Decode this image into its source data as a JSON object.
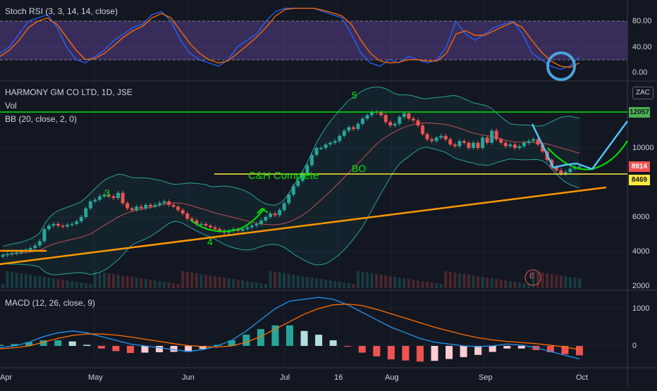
{
  "panes": {
    "stoch": {
      "title": "Stoch RSI (3, 3, 14, 14, close)",
      "yticks": [
        "80.00",
        "40.00",
        "0.00"
      ]
    },
    "price": {
      "symbol": "HARMONY GM CO LTD, 1D, JSE",
      "vol": "Vol",
      "bb": "BB (20, close, 2, 0)",
      "yticks": [
        "10000",
        "6000",
        "4000",
        "2000"
      ],
      "toggle": "ZAC"
    },
    "macd": {
      "title": "MACD (12, 26, close, 9)",
      "yticks": [
        "1000",
        "0"
      ]
    }
  },
  "price_tags": {
    "resistance": {
      "value": "12057",
      "bg": "#4caf50",
      "fg": "#131722"
    },
    "last": {
      "value": "8914",
      "bg": "#ef5350",
      "fg": "#ffffff"
    },
    "support": {
      "value": "8469",
      "bg": "#ffeb3b",
      "fg": "#131722"
    }
  },
  "annotations": {
    "wave3": "3",
    "wave4": "4",
    "wave5": "5",
    "ch_complete": "C&H Complete",
    "bo": "BO",
    "earnings": "E"
  },
  "x_axis": [
    "Apr",
    "May",
    "Jun",
    "Jul",
    "16",
    "Aug",
    "Sep",
    "Oct"
  ],
  "colors": {
    "up": "#26a69a",
    "down": "#ef5350",
    "green_line": "#00e600",
    "yellow": "#ffeb3b",
    "orange": "#ff9800",
    "cyan": "#4fc3f7"
  },
  "chart_data": {
    "type": "candlestick",
    "title": "HARMONY GM CO LTD, 1D, JSE",
    "levels": {
      "resistance": 12057,
      "support": 8469,
      "last": 8914
    },
    "closes": [
      3800,
      3850,
      3900,
      3950,
      4000,
      4100,
      4200,
      4350,
      4600,
      5300,
      5500,
      5600,
      5500,
      5450,
      5550,
      5600,
      5750,
      6000,
      6500,
      6900,
      7000,
      7200,
      7300,
      7200,
      7100,
      7400,
      6800,
      6500,
      6400,
      6600,
      6500,
      6700,
      6600,
      6700,
      6800,
      6900,
      6700,
      6600,
      6400,
      6200,
      5900,
      5800,
      5600,
      5600,
      5500,
      5400,
      5300,
      5200,
      5100,
      5200,
      5300,
      5200,
      5300,
      5400,
      5500,
      5600,
      5800,
      6000,
      6200,
      6100,
      6400,
      6800,
      7300,
      7800,
      8100,
      8500,
      9000,
      9600,
      10000,
      10000,
      10200,
      10300,
      10400,
      10700,
      11000,
      11200,
      11100,
      11400,
      11700,
      11900,
      12100,
      12050,
      11900,
      11500,
      11300,
      11400,
      11800,
      12000,
      11700,
      11600,
      11300,
      10800,
      10500,
      10400,
      10600,
      10700,
      10500,
      10200,
      10100,
      10400,
      10300,
      10000,
      10300,
      10000,
      10600,
      10300,
      11000,
      10500,
      10300,
      10100,
      10200,
      10000,
      10100,
      10300,
      10400,
      10500,
      10200,
      9800,
      9300,
      8900,
      8700,
      8500,
      8600,
      8800,
      8900,
      8914
    ],
    "stoch_rsi": {
      "k": [
        30,
        40,
        60,
        80,
        85,
        90,
        70,
        40,
        20,
        15,
        25,
        35,
        50,
        60,
        70,
        75,
        90,
        95,
        80,
        50,
        30,
        20,
        15,
        10,
        20,
        40,
        50,
        60,
        80,
        95,
        100,
        100,
        100,
        100,
        95,
        90,
        85,
        60,
        30,
        15,
        10,
        20,
        15,
        25,
        20,
        15,
        20,
        40,
        80,
        60,
        50,
        60,
        70,
        75,
        80,
        60,
        30,
        20,
        10,
        5,
        10,
        25
      ],
      "d": [
        25,
        35,
        50,
        70,
        80,
        85,
        75,
        55,
        35,
        20,
        22,
        30,
        42,
        55,
        65,
        72,
        85,
        92,
        85,
        65,
        45,
        30,
        20,
        15,
        18,
        30,
        42,
        55,
        70,
        88,
        98,
        100,
        100,
        100,
        97,
        93,
        88,
        75,
        50,
        30,
        18,
        15,
        16,
        20,
        20,
        18,
        18,
        30,
        60,
        65,
        58,
        58,
        65,
        72,
        78,
        70,
        50,
        32,
        18,
        10,
        8,
        15
      ]
    },
    "macd": {
      "macd": [
        -50,
        0,
        100,
        250,
        350,
        400,
        350,
        250,
        150,
        50,
        0,
        -50,
        -100,
        -150,
        -100,
        0,
        150,
        400,
        700,
        1000,
        1200,
        1250,
        1300,
        1250,
        1100,
        900,
        700,
        500,
        350,
        200,
        100,
        50,
        0,
        -20,
        0,
        50,
        20,
        -50,
        -150,
        -250,
        -350
      ],
      "signal": [
        -80,
        -50,
        0,
        100,
        200,
        280,
        320,
        320,
        290,
        240,
        180,
        120,
        60,
        10,
        -20,
        -30,
        0,
        100,
        250,
        450,
        650,
        850,
        1000,
        1100,
        1120,
        1080,
        980,
        860,
        740,
        620,
        500,
        400,
        300,
        220,
        160,
        120,
        90,
        60,
        20,
        -30,
        -100
      ]
    },
    "x_ticks": [
      "Apr",
      "May",
      "Jun",
      "Jul",
      "16",
      "Aug",
      "Sep",
      "Oct"
    ],
    "y_ticks_price": [
      10000,
      6000,
      4000,
      2000
    ],
    "y_ticks_stoch": [
      80,
      40,
      0
    ],
    "y_ticks_macd": [
      1000,
      0
    ]
  }
}
